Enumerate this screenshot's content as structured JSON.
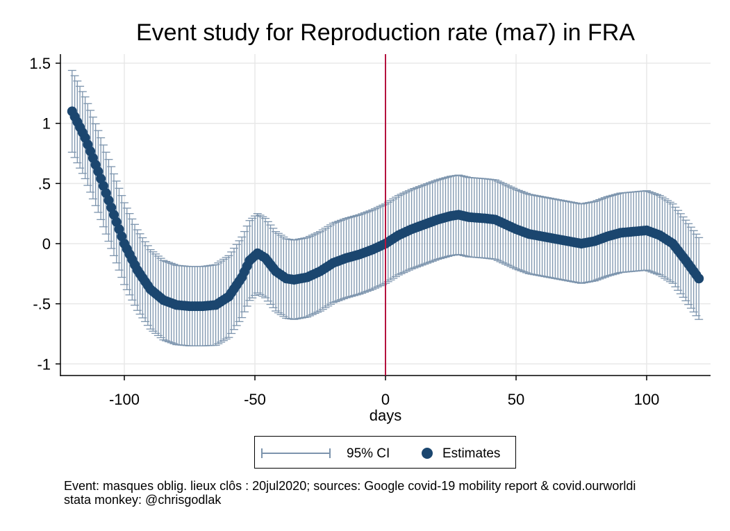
{
  "chart_data": {
    "type": "scatter",
    "title": "Event study for Reproduction rate (ma7) in FRA",
    "xlabel": "days",
    "ylabel": "",
    "xlim": [
      -120,
      120
    ],
    "ylim": [
      -1.1,
      1.6
    ],
    "xticks": [
      -100,
      -50,
      0,
      50,
      100
    ],
    "xtick_labels": [
      "-100",
      "-50",
      "0",
      "50",
      "100"
    ],
    "yticks": [
      -1,
      -0.5,
      0,
      0.5,
      1,
      1.5
    ],
    "ytick_labels": [
      "-1",
      "-.5",
      "0",
      ".5",
      "1",
      "1.5"
    ],
    "grid": true,
    "event_line_x": 0,
    "ci_halfwidth": [
      [
        -120,
        0.34
      ],
      [
        -110,
        0.34
      ],
      [
        -100,
        0.34
      ],
      [
        -90,
        0.33
      ],
      [
        -80,
        0.33
      ],
      [
        -70,
        0.33
      ],
      [
        -60,
        0.34
      ],
      [
        -50,
        0.33
      ],
      [
        -40,
        0.33
      ],
      [
        -30,
        0.33
      ],
      [
        -20,
        0.33
      ],
      [
        -10,
        0.33
      ],
      [
        0,
        0.33
      ],
      [
        10,
        0.33
      ],
      [
        20,
        0.33
      ],
      [
        30,
        0.33
      ],
      [
        40,
        0.33
      ],
      [
        50,
        0.33
      ],
      [
        60,
        0.33
      ],
      [
        70,
        0.33
      ],
      [
        80,
        0.33
      ],
      [
        90,
        0.33
      ],
      [
        100,
        0.33
      ],
      [
        110,
        0.33
      ],
      [
        120,
        0.34
      ]
    ],
    "estimates_knots": [
      [
        -120,
        1.1
      ],
      [
        -115,
        0.88
      ],
      [
        -110,
        0.6
      ],
      [
        -105,
        0.3
      ],
      [
        -100,
        0.0
      ],
      [
        -95,
        -0.22
      ],
      [
        -90,
        -0.38
      ],
      [
        -85,
        -0.47
      ],
      [
        -80,
        -0.51
      ],
      [
        -75,
        -0.52
      ],
      [
        -70,
        -0.52
      ],
      [
        -65,
        -0.51
      ],
      [
        -60,
        -0.44
      ],
      [
        -55,
        -0.28
      ],
      [
        -52,
        -0.14
      ],
      [
        -49,
        -0.08
      ],
      [
        -46,
        -0.12
      ],
      [
        -42,
        -0.23
      ],
      [
        -38,
        -0.29
      ],
      [
        -35,
        -0.3
      ],
      [
        -30,
        -0.28
      ],
      [
        -25,
        -0.23
      ],
      [
        -20,
        -0.16
      ],
      [
        -15,
        -0.12
      ],
      [
        -10,
        -0.09
      ],
      [
        -5,
        -0.05
      ],
      [
        0,
        0.0
      ],
      [
        5,
        0.07
      ],
      [
        10,
        0.12
      ],
      [
        15,
        0.16
      ],
      [
        20,
        0.2
      ],
      [
        25,
        0.23
      ],
      [
        28,
        0.24
      ],
      [
        32,
        0.22
      ],
      [
        38,
        0.21
      ],
      [
        42,
        0.2
      ],
      [
        46,
        0.16
      ],
      [
        50,
        0.12
      ],
      [
        55,
        0.08
      ],
      [
        60,
        0.06
      ],
      [
        65,
        0.04
      ],
      [
        70,
        0.02
      ],
      [
        75,
        0.0
      ],
      [
        80,
        0.02
      ],
      [
        85,
        0.06
      ],
      [
        90,
        0.09
      ],
      [
        95,
        0.1
      ],
      [
        100,
        0.11
      ],
      [
        105,
        0.07
      ],
      [
        110,
        0.0
      ],
      [
        115,
        -0.14
      ],
      [
        120,
        -0.29
      ]
    ],
    "series": [
      {
        "name": "95% CI",
        "color": "#7c94ad"
      },
      {
        "name": "Estimates",
        "color": "#1b466f"
      }
    ],
    "event_line_color": "#b5123e",
    "legend_placement": "bottom"
  },
  "legend": {
    "ci_label": "95% CI",
    "estimates_label": "Estimates"
  },
  "notes": {
    "line1": "Event: masques oblig. lieux clôs : 20jul2020; sources: Google covid-19 mobility report & covid.ourworldi",
    "line2": "stata monkey: @chrisgodlak"
  }
}
